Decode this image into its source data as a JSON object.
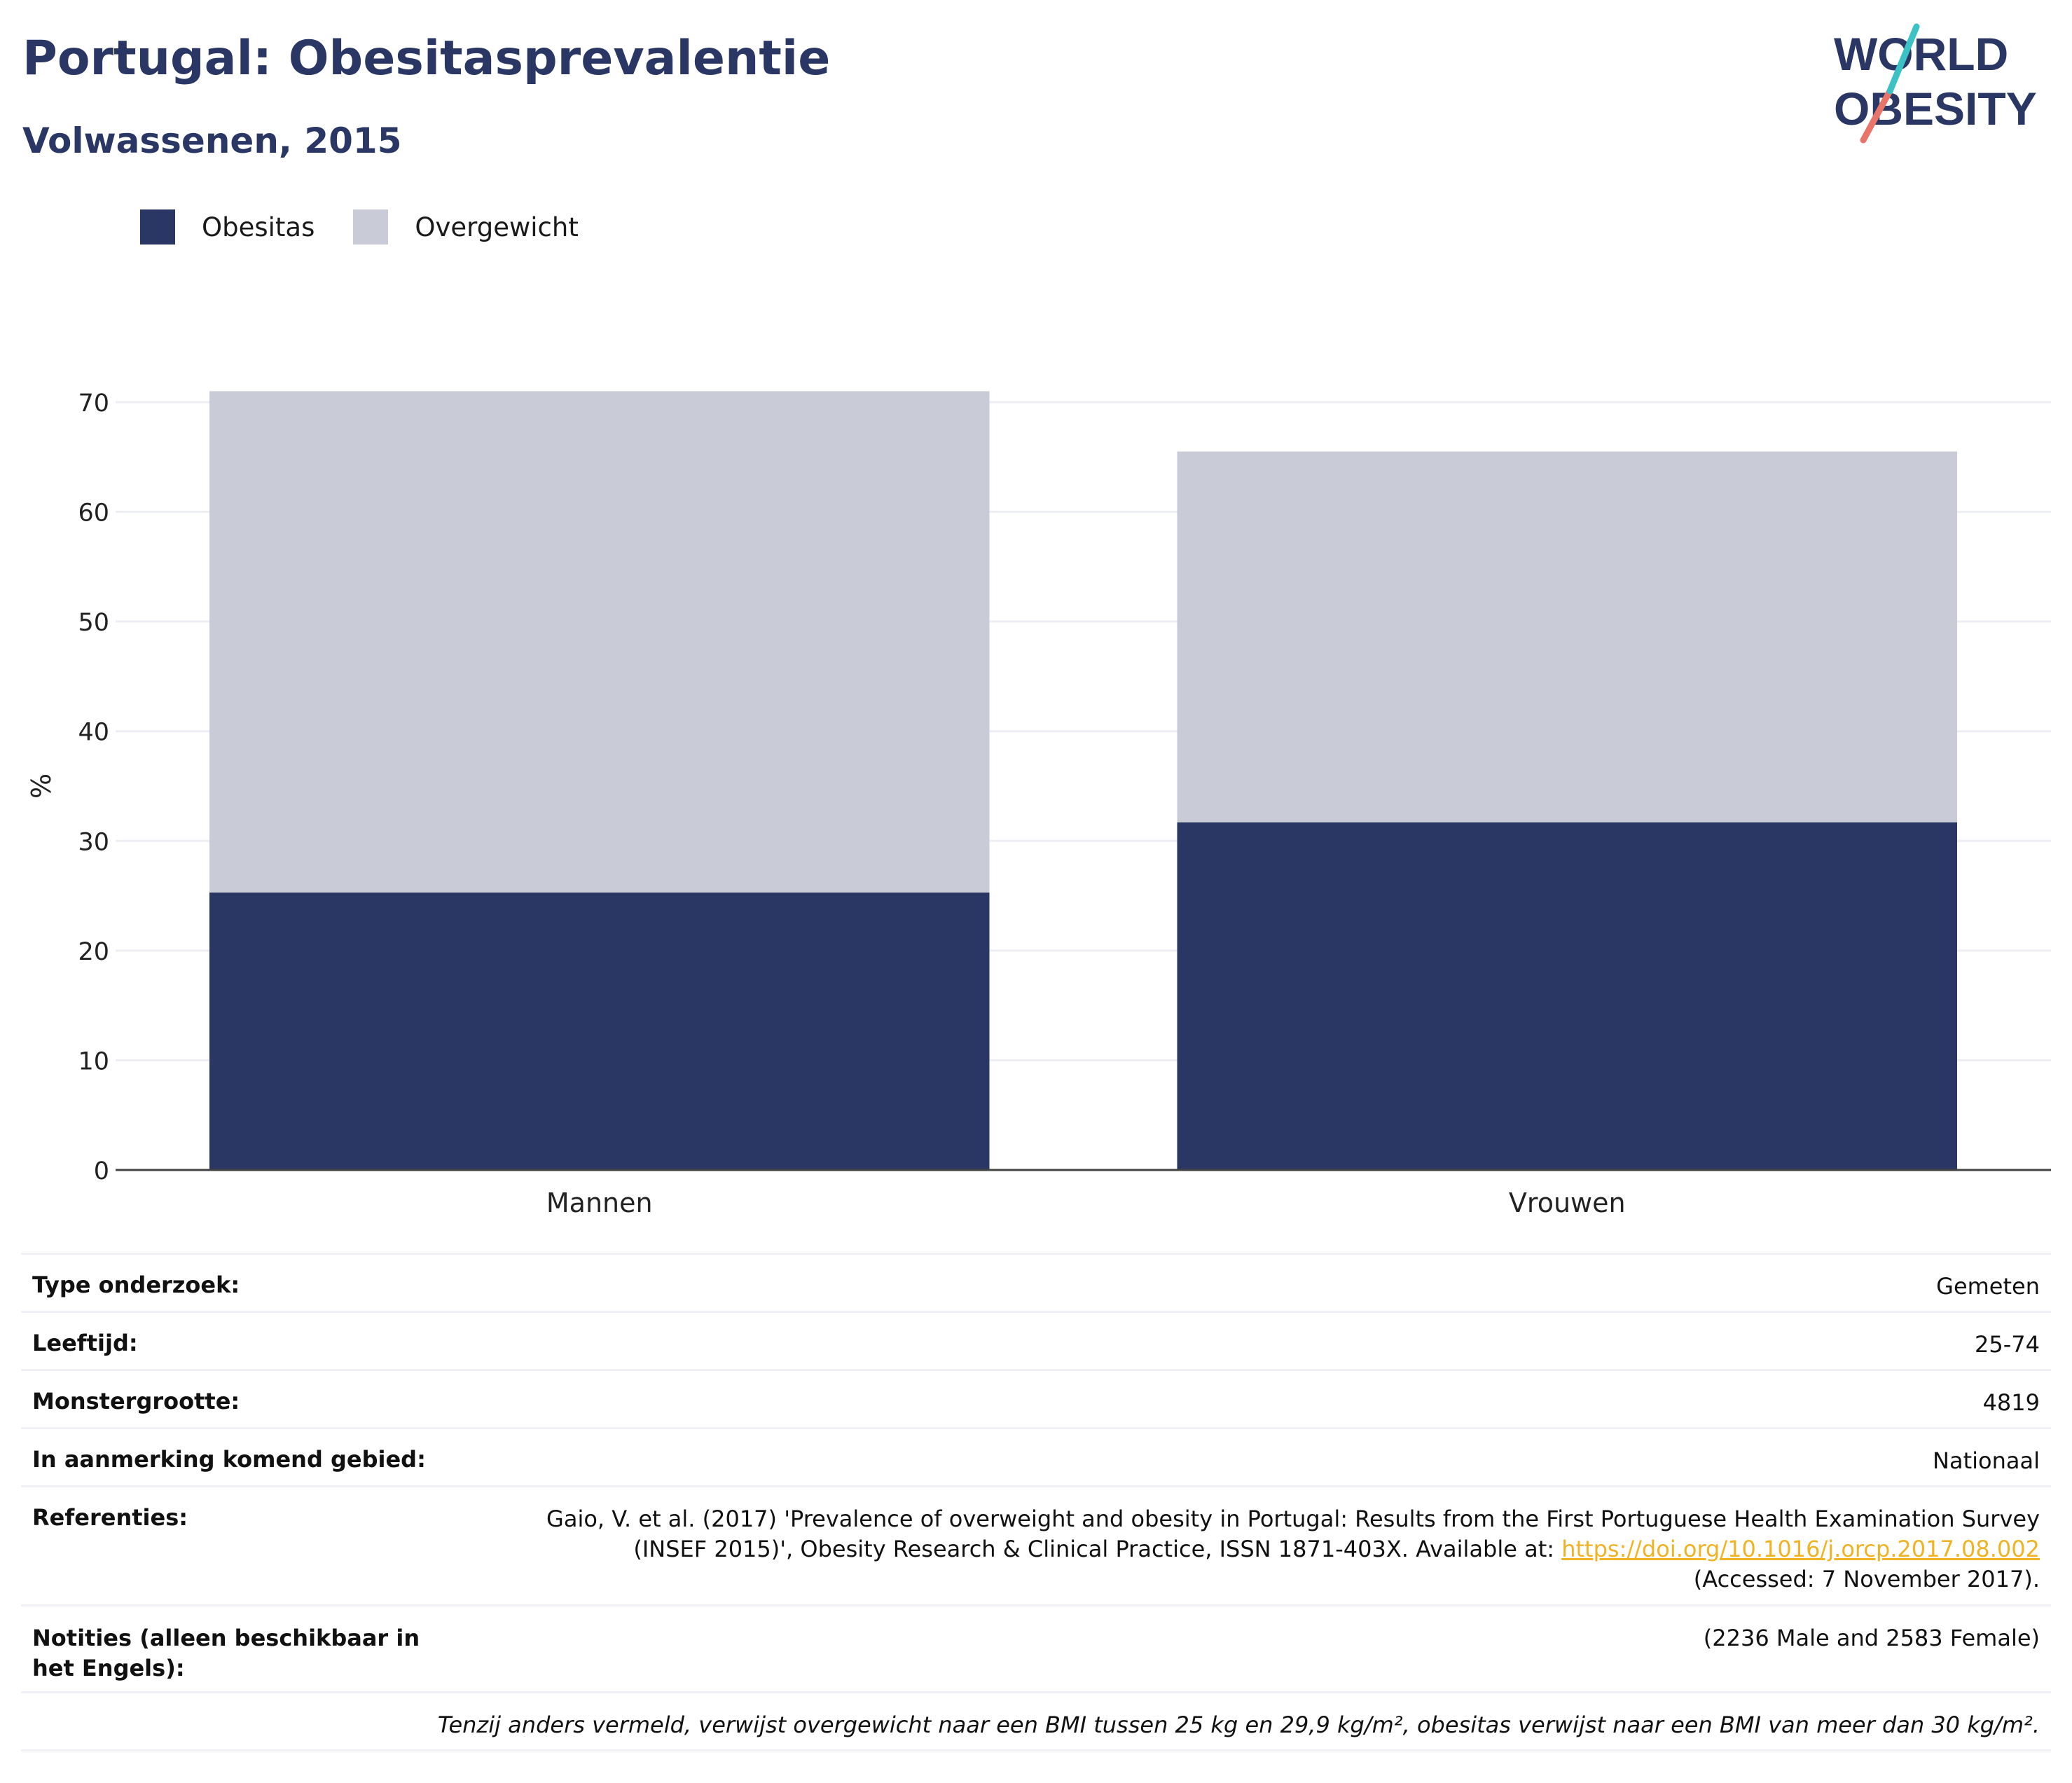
{
  "title": "Portugal: Obesitasprevalentie",
  "subtitle": "Volwassenen, 2015",
  "logo": {
    "line1": "WORLD",
    "line2": "OBESITY"
  },
  "legend": [
    {
      "label": "Obesitas",
      "color": "#2a3764"
    },
    {
      "label": "Overgewicht",
      "color": "#c9ccd7"
    }
  ],
  "chart_data": {
    "type": "bar",
    "stacked": true,
    "categories": [
      "Mannen",
      "Vrouwen"
    ],
    "series": [
      {
        "name": "Obesitas",
        "values": [
          25.3,
          31.7
        ],
        "color": "#2a3764"
      },
      {
        "name": "Overgewicht",
        "values": [
          45.7,
          33.8
        ],
        "color": "#c9ccd7"
      }
    ],
    "ylabel": "%",
    "ylim": [
      0,
      70
    ],
    "yticks": [
      0,
      10,
      20,
      30,
      40,
      50,
      60,
      70
    ],
    "grid": true
  },
  "meta": {
    "type_label": "Type onderzoek:",
    "type_value": "Gemeten",
    "age_label": "Leeftijd:",
    "age_value": "25-74",
    "sample_label": "Monstergrootte:",
    "sample_value": "4819",
    "area_label": "In aanmerking komend gebied:",
    "area_value": "Nationaal",
    "ref_label": "Referenties:",
    "ref_text1": "Gaio, V. et al. (2017) 'Prevalence of overweight and obesity in Portugal: Results from the First Portuguese Health Examination Survey",
    "ref_text2": "(INSEF 2015)', Obesity Research & Clinical Practice, ISSN 1871-403X. Available at: ",
    "ref_link": "https://doi.org/10.1016/j.orcp.2017.08.002",
    "ref_text3": "(Accessed: 7 November 2017).",
    "notes_label": "Notities (alleen beschikbaar in het Engels):",
    "notes_value": "(2236 Male and 2583 Female)",
    "footnote": "Tenzij anders vermeld, verwijst overgewicht naar een BMI tussen 25 kg en 29,9 kg/m², obesitas verwijst naar een BMI van meer dan 30 kg/m²."
  }
}
